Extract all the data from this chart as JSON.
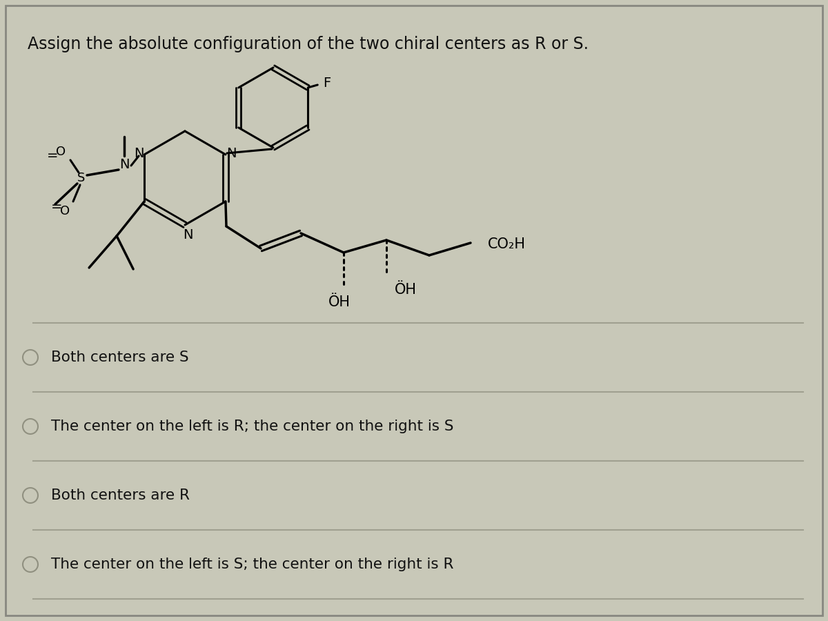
{
  "title": "Assign the absolute configuration of the two chiral centers as R or S.",
  "title_fontsize": 17,
  "background_color": "#c8c8b8",
  "panel_color": "#d4d4c0",
  "choices": [
    "Both centers are S",
    "The center on the left is R; the center on the right is S",
    "Both centers are R",
    "The center on the left is S; the center on the right is R"
  ],
  "choice_fontsize": 15.5,
  "line_color": "#a0a090",
  "radio_color": "#909080",
  "text_color": "#111111",
  "mol_color": "#000000",
  "mol_brown": "#6B3A1F"
}
